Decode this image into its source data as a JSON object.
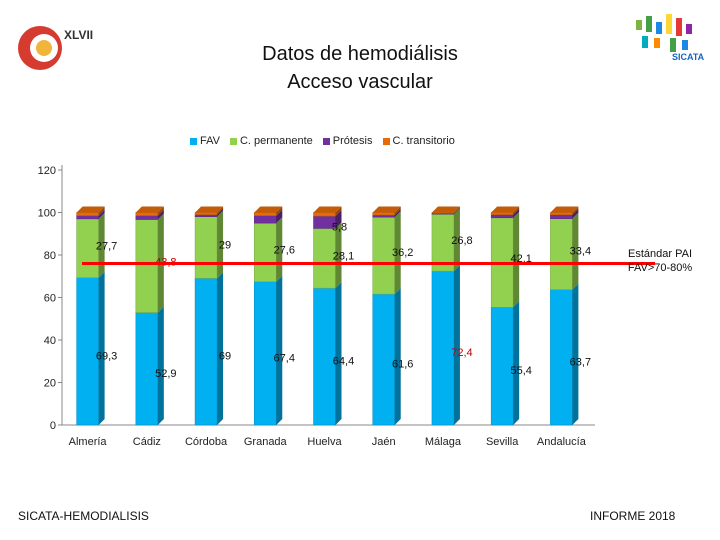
{
  "header": {
    "title_line1": "Datos de hemodiálisis",
    "title_line2": "Acceso vascular",
    "logo_left_text": "XLVII",
    "logo_right_text": "SICATA"
  },
  "footer": {
    "left": "SICATA-HEMODIALISIS",
    "right": "INFORME 2018"
  },
  "standard": {
    "line1": "Estándar PAI",
    "line2": "FAV>70-80%",
    "value": 76,
    "color": "#ff0000"
  },
  "colors": {
    "FAV": "#00b0f0",
    "C. permanente": "#92d050",
    "Prótesis": "#7030a0",
    "C. transitorio": "#e46c0a"
  },
  "chart_data": {
    "type": "bar",
    "stacked": true,
    "categories": [
      "Almería",
      "Cádiz",
      "Córdoba",
      "Granada",
      "Huelva",
      "Jaén",
      "Málaga",
      "Sevilla",
      "Andalucía"
    ],
    "series": [
      {
        "name": "FAV",
        "values": [
          69.3,
          52.9,
          69,
          67.4,
          64.4,
          61.6,
          72.4,
          55.4,
          63.7
        ]
      },
      {
        "name": "C. permanente",
        "values": [
          27.7,
          43.8,
          29,
          27.6,
          28.1,
          36.2,
          26.8,
          42.1,
          33.4
        ]
      },
      {
        "name": "Prótesis",
        "values": [
          1.5,
          1.8,
          1.0,
          3.5,
          5.8,
          1.0,
          0.4,
          1.5,
          1.8
        ]
      },
      {
        "name": "C. transitorio",
        "values": [
          1.5,
          1.5,
          1.0,
          1.5,
          1.7,
          1.2,
          0.4,
          1.0,
          1.1
        ]
      }
    ],
    "data_labels": {
      "FAV": [
        "69,3",
        "52,9",
        "69",
        "67,4",
        "64,4",
        "61,6",
        "72,4",
        "55,4",
        "63,7"
      ],
      "C. permanente": [
        "27,7",
        "43,8",
        "29",
        "27,6",
        "28,1",
        "36,2",
        "26,8",
        "42,1",
        "33,4"
      ],
      "Prótesis": [
        "",
        "",
        "",
        "",
        "5,8",
        "",
        "",
        "",
        ""
      ]
    },
    "yticks": [
      "0",
      "20",
      "40",
      "60",
      "80",
      "100",
      "120"
    ],
    "ylim": [
      0,
      120
    ],
    "legend_position": "top",
    "grid": false
  }
}
